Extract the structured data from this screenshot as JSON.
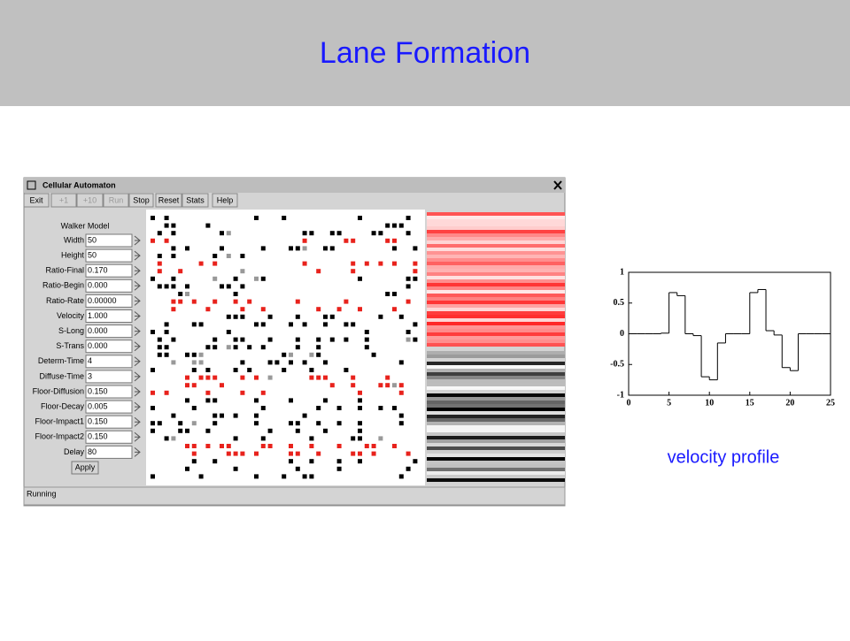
{
  "slide": {
    "title": "Lane Formation",
    "caption": "velocity profile"
  },
  "window": {
    "title": "Cellular Automaton",
    "toolbar": [
      {
        "label": "Exit",
        "enabled": true
      },
      {
        "label": "+1",
        "enabled": false
      },
      {
        "label": "+10",
        "enabled": false
      },
      {
        "label": "Run",
        "enabled": false
      },
      {
        "label": "Stop",
        "enabled": true
      },
      {
        "label": "Reset",
        "enabled": true
      },
      {
        "label": "Stats",
        "enabled": true
      },
      {
        "label": "Help",
        "enabled": true
      }
    ],
    "panel_title": "Walker Model",
    "parameters": [
      {
        "label": "Width",
        "value": "50"
      },
      {
        "label": "Height",
        "value": "50"
      },
      {
        "label": "Ratio-Final",
        "value": "0.170"
      },
      {
        "label": "Ratio-Begin",
        "value": "0.000"
      },
      {
        "label": "Ratio-Rate",
        "value": "0.00000"
      },
      {
        "label": "Velocity",
        "value": "1.000"
      },
      {
        "label": "S-Long",
        "value": "0.000"
      },
      {
        "label": "S-Trans",
        "value": "0.000"
      },
      {
        "label": "Determ-Time",
        "value": "4"
      },
      {
        "label": "Diffuse-Time",
        "value": "3"
      },
      {
        "label": "Floor-Diffusion",
        "value": "0.150"
      },
      {
        "label": "Floor-Decay",
        "value": "0.005"
      },
      {
        "label": "Floor-Impact1",
        "value": "0.150"
      },
      {
        "label": "Floor-Impact2",
        "value": "0.150"
      },
      {
        "label": "Delay",
        "value": "80"
      }
    ],
    "apply": "Apply",
    "status": "Running"
  },
  "chart_data": {
    "type": "line",
    "drawstyle": "steps-post",
    "x": [
      0,
      1,
      2,
      3,
      4,
      5,
      6,
      7,
      8,
      9,
      10,
      11,
      12,
      13,
      14,
      15,
      16,
      17,
      18,
      19,
      20,
      21,
      22,
      23,
      24
    ],
    "series": [
      {
        "color": "#000000",
        "values": [
          0,
          0,
          0,
          0,
          0.01,
          0.67,
          0.62,
          0,
          -0.03,
          -0.7,
          -0.75,
          -0.15,
          0,
          0,
          0,
          0.67,
          0.72,
          0.05,
          -0.02,
          -0.55,
          -0.6,
          0,
          0,
          0,
          0
        ]
      }
    ],
    "xlim": [
      0,
      25
    ],
    "ylim": [
      -1,
      1
    ],
    "xticks": [
      0,
      5,
      10,
      15,
      20,
      25
    ],
    "yticks": [
      -1,
      -0.5,
      0,
      0.5,
      1
    ]
  }
}
